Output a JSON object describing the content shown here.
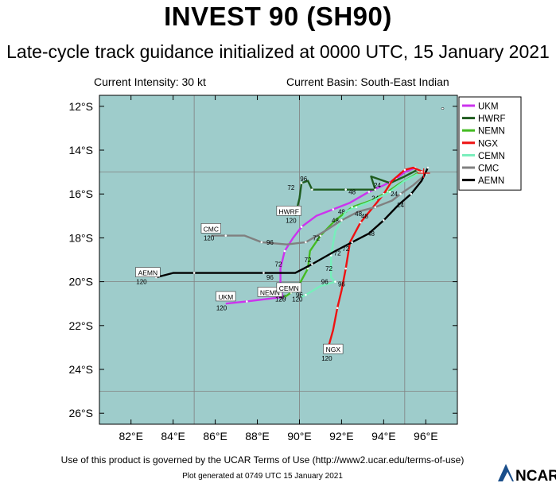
{
  "title": "INVEST 90 (SH90)",
  "subtitle": "Late-cycle track guidance initialized at 0000 UTC, 15 January 2021",
  "info": {
    "intensity": "Current Intensity: 30 kt",
    "basin": "Current Basin: South-East Indian"
  },
  "footer": {
    "terms": "Use of this product is governed by the UCAR Terms of Use (http://www2.ucar.edu/terms-of-use)",
    "generated": "Plot generated at 0749 UTC   15 January 2021",
    "logo_text": "NCAR"
  },
  "colors": {
    "ocean": "#9ecccb",
    "land": "#ffffff",
    "grid": "#808080"
  },
  "chart_data": {
    "type": "line",
    "title": "INVEST 90 (SH90)",
    "xlim": [
      80.5,
      97.5
    ],
    "ylim": [
      -26.5,
      -11.5
    ],
    "xticks": [
      {
        "v": 82,
        "label": "82°E"
      },
      {
        "v": 84,
        "label": "84°E"
      },
      {
        "v": 86,
        "label": "86°E"
      },
      {
        "v": 88,
        "label": "88°E"
      },
      {
        "v": 90,
        "label": "90°E"
      },
      {
        "v": 92,
        "label": "92°E"
      },
      {
        "v": 94,
        "label": "94°E"
      },
      {
        "v": 96,
        "label": "96°E"
      }
    ],
    "yticks": [
      {
        "v": -12,
        "label": "12°S"
      },
      {
        "v": -14,
        "label": "14°S"
      },
      {
        "v": -16,
        "label": "16°S"
      },
      {
        "v": -18,
        "label": "18°S"
      },
      {
        "v": -20,
        "label": "20°S"
      },
      {
        "v": -22,
        "label": "22°S"
      },
      {
        "v": -24,
        "label": "24°S"
      },
      {
        "v": -26,
        "label": "26°S"
      }
    ],
    "gridlines": {
      "lon": [
        85,
        90,
        95
      ],
      "lat": [
        -15,
        -20,
        -25
      ]
    },
    "series": [
      {
        "name": "UKM",
        "color": "#cc33ee",
        "points": [
          [
            95.5,
            -14.8
          ],
          [
            95.0,
            -15.0
          ],
          [
            94.6,
            -15.3
          ],
          [
            94.0,
            -15.6
          ],
          [
            93.3,
            -15.9
          ],
          [
            92.4,
            -16.4
          ],
          [
            91.6,
            -16.7
          ],
          [
            90.8,
            -17.0
          ],
          [
            90.1,
            -17.5
          ],
          [
            89.7,
            -18.0
          ],
          [
            89.3,
            -18.6
          ],
          [
            89.1,
            -19.4
          ],
          [
            89.1,
            -20.1
          ],
          [
            89.2,
            -20.7
          ],
          [
            87.5,
            -20.9
          ],
          [
            86.5,
            -21.0
          ]
        ],
        "labels": [
          {
            "text": "48",
            "x": 92.0,
            "y": -16.8
          },
          {
            "text": "72",
            "x": 89.0,
            "y": -19.2
          },
          {
            "text": "96",
            "x": 89.2,
            "y": -20.7
          },
          {
            "text": "120",
            "x": 86.3,
            "y": -21.2
          }
        ],
        "end_box": {
          "text": "UKM",
          "x": 86.5,
          "y": -20.7
        }
      },
      {
        "name": "HWRF",
        "color": "#1f5c1f",
        "points": [
          [
            95.6,
            -14.9
          ],
          [
            95.0,
            -15.2
          ],
          [
            94.3,
            -15.5
          ],
          [
            93.4,
            -15.2
          ],
          [
            93.6,
            -15.8
          ],
          [
            92.9,
            -15.8
          ],
          [
            92.2,
            -15.8
          ],
          [
            91.5,
            -15.8
          ],
          [
            90.6,
            -15.8
          ],
          [
            90.4,
            -15.4
          ],
          [
            90.1,
            -15.5
          ],
          [
            90.0,
            -16.2
          ],
          [
            89.9,
            -16.6
          ],
          [
            89.8,
            -17.0
          ]
        ],
        "labels": [
          {
            "text": "24",
            "x": 93.7,
            "y": -15.6
          },
          {
            "text": "48",
            "x": 92.5,
            "y": -15.9
          },
          {
            "text": "72",
            "x": 89.6,
            "y": -15.7
          },
          {
            "text": "96",
            "x": 90.2,
            "y": -15.3
          },
          {
            "text": "120",
            "x": 89.6,
            "y": -17.2
          }
        ],
        "end_box": {
          "text": "HWRF",
          "x": 89.5,
          "y": -16.8
        }
      },
      {
        "name": "NEMN",
        "color": "#44bb22",
        "points": [
          [
            95.7,
            -15.0
          ],
          [
            94.8,
            -15.5
          ],
          [
            94.2,
            -15.9
          ],
          [
            93.4,
            -16.3
          ],
          [
            92.5,
            -16.6
          ],
          [
            91.7,
            -17.2
          ],
          [
            91.0,
            -17.9
          ],
          [
            90.5,
            -18.6
          ],
          [
            90.4,
            -19.4
          ],
          [
            90.0,
            -20.1
          ],
          [
            89.6,
            -20.5
          ],
          [
            89.3,
            -20.7
          ]
        ],
        "labels": [
          {
            "text": "24",
            "x": 93.6,
            "y": -16.2
          },
          {
            "text": "48",
            "x": 91.7,
            "y": -17.2
          },
          {
            "text": "72",
            "x": 90.4,
            "y": -19.0
          },
          {
            "text": "96",
            "x": 90.0,
            "y": -20.6
          },
          {
            "text": "120",
            "x": 89.1,
            "y": -20.8
          }
        ],
        "end_box": {
          "text": "NEMN",
          "x": 88.6,
          "y": -20.5
        }
      },
      {
        "name": "NGX",
        "color": "#ee1111",
        "points": [
          [
            95.9,
            -15.0
          ],
          [
            95.4,
            -14.8
          ],
          [
            95.0,
            -14.9
          ],
          [
            94.4,
            -15.4
          ],
          [
            94.0,
            -16.0
          ],
          [
            93.5,
            -16.6
          ],
          [
            92.9,
            -17.3
          ],
          [
            92.4,
            -18.2
          ],
          [
            92.2,
            -19.4
          ],
          [
            92.0,
            -20.4
          ],
          [
            91.8,
            -21.2
          ],
          [
            91.6,
            -22.2
          ],
          [
            91.4,
            -22.9
          ]
        ],
        "labels": [
          {
            "text": "48",
            "x": 93.1,
            "y": -17.0
          },
          {
            "text": "72",
            "x": 92.2,
            "y": -18.5
          },
          {
            "text": "96",
            "x": 92.0,
            "y": -20.1
          },
          {
            "text": "120",
            "x": 91.3,
            "y": -23.5
          }
        ],
        "end_box": {
          "text": "NGX",
          "x": 91.6,
          "y": -23.1
        }
      },
      {
        "name": "CEMN",
        "color": "#77eebb",
        "points": [
          [
            95.8,
            -15.0
          ],
          [
            95.0,
            -15.4
          ],
          [
            94.3,
            -15.9
          ],
          [
            93.5,
            -16.3
          ],
          [
            92.7,
            -16.6
          ],
          [
            92.2,
            -16.8
          ],
          [
            92.0,
            -17.2
          ],
          [
            91.7,
            -17.7
          ],
          [
            91.5,
            -18.8
          ],
          [
            91.5,
            -19.8
          ],
          [
            91.7,
            -20.0
          ],
          [
            91.0,
            -20.2
          ],
          [
            90.3,
            -20.6
          ],
          [
            90.1,
            -20.7
          ]
        ],
        "labels": [
          {
            "text": "72",
            "x": 91.4,
            "y": -19.4
          },
          {
            "text": "96",
            "x": 91.2,
            "y": -20.0
          },
          {
            "text": "120",
            "x": 89.9,
            "y": -20.8
          }
        ],
        "end_box": {
          "text": "CEMN",
          "x": 89.5,
          "y": -20.3
        }
      },
      {
        "name": "CMC",
        "color": "#808080",
        "points": [
          [
            96.0,
            -15.1
          ],
          [
            95.4,
            -15.6
          ],
          [
            94.8,
            -16.0
          ],
          [
            94.4,
            -16.3
          ],
          [
            93.6,
            -16.6
          ],
          [
            92.8,
            -16.8
          ],
          [
            92.0,
            -17.2
          ],
          [
            91.2,
            -17.7
          ],
          [
            90.3,
            -18.2
          ],
          [
            89.4,
            -18.3
          ],
          [
            88.2,
            -18.2
          ],
          [
            87.4,
            -17.9
          ],
          [
            86.5,
            -17.9
          ],
          [
            85.8,
            -17.9
          ]
        ],
        "labels": [
          {
            "text": "24",
            "x": 94.5,
            "y": -16.0
          },
          {
            "text": "48",
            "x": 92.8,
            "y": -16.9
          },
          {
            "text": "72",
            "x": 90.8,
            "y": -18.0
          },
          {
            "text": "96",
            "x": 88.6,
            "y": -18.2
          },
          {
            "text": "120",
            "x": 85.7,
            "y": -18.0
          }
        ],
        "end_box": {
          "text": "CMC",
          "x": 85.8,
          "y": -17.6
        }
      },
      {
        "name": "AEMN",
        "color": "#000000",
        "points": [
          [
            96.1,
            -14.8
          ],
          [
            95.8,
            -15.4
          ],
          [
            95.3,
            -16.0
          ],
          [
            94.7,
            -16.5
          ],
          [
            94.0,
            -17.2
          ],
          [
            93.3,
            -17.8
          ],
          [
            92.5,
            -18.2
          ],
          [
            91.7,
            -18.6
          ],
          [
            90.6,
            -19.2
          ],
          [
            89.8,
            -19.6
          ],
          [
            88.3,
            -19.6
          ],
          [
            86.6,
            -19.6
          ],
          [
            85.0,
            -19.6
          ],
          [
            84.0,
            -19.6
          ],
          [
            83.2,
            -19.8
          ]
        ],
        "labels": [
          {
            "text": "24",
            "x": 94.8,
            "y": -16.5
          },
          {
            "text": "48",
            "x": 93.4,
            "y": -17.8
          },
          {
            "text": "72",
            "x": 91.8,
            "y": -18.7
          },
          {
            "text": "96",
            "x": 88.6,
            "y": -19.8
          },
          {
            "text": "120",
            "x": 82.5,
            "y": -20.0
          }
        ],
        "end_box": {
          "text": "AEMN",
          "x": 82.8,
          "y": -19.6
        }
      }
    ]
  }
}
